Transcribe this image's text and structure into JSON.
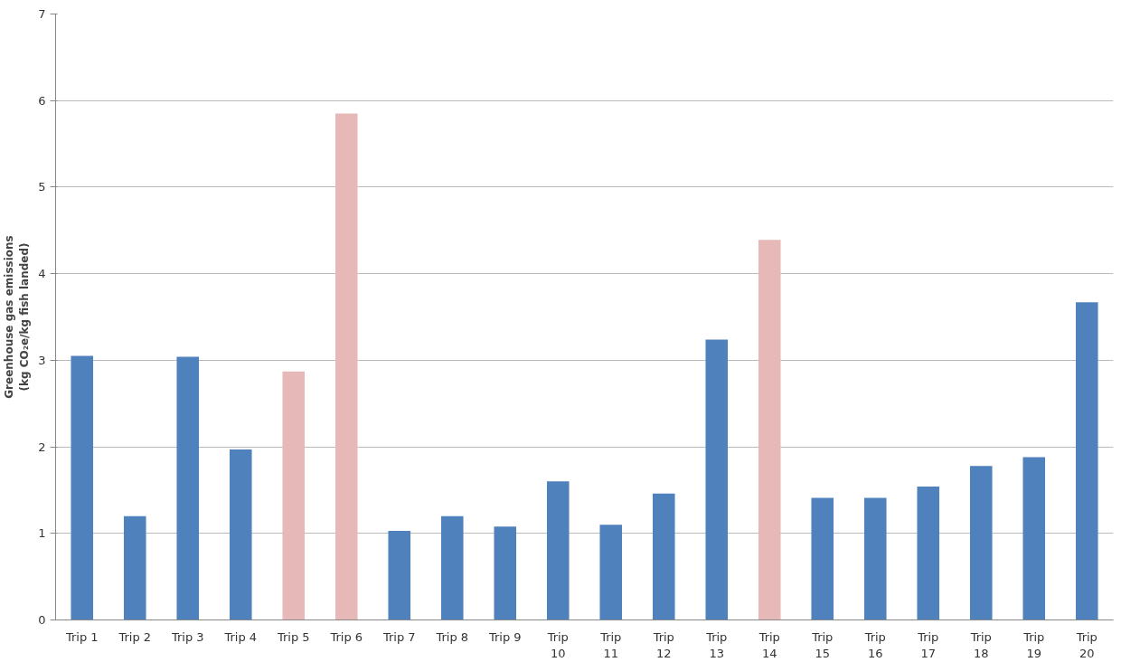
{
  "chart_data": {
    "type": "bar",
    "ylabel": "Greenhouse gas emissions\n(kg CO₂e/kg fish landed)",
    "categories": [
      "Trip 1",
      "Trip 2",
      "Trip 3",
      "Trip 4",
      "Trip 5",
      "Trip 6",
      "Trip 7",
      "Trip 8",
      "Trip 9",
      "Trip 10",
      "Trip 11",
      "Trip 12",
      "Trip 13",
      "Trip 14",
      "Trip 15",
      "Trip 16",
      "Trip 17",
      "Trip 18",
      "Trip 19",
      "Trip 20"
    ],
    "values": [
      3.05,
      1.2,
      3.04,
      1.97,
      2.87,
      5.85,
      1.03,
      1.2,
      1.08,
      1.6,
      1.1,
      1.46,
      3.24,
      4.39,
      1.41,
      1.41,
      1.54,
      1.78,
      1.88,
      3.67
    ],
    "colors": [
      "#4f81bd",
      "#4f81bd",
      "#4f81bd",
      "#4f81bd",
      "#e6b9b8",
      "#e6b9b8",
      "#4f81bd",
      "#4f81bd",
      "#4f81bd",
      "#4f81bd",
      "#4f81bd",
      "#4f81bd",
      "#4f81bd",
      "#e6b9b8",
      "#4f81bd",
      "#4f81bd",
      "#4f81bd",
      "#4f81bd",
      "#4f81bd",
      "#4f81bd"
    ],
    "ylim": [
      0,
      7
    ],
    "yticks": [
      0,
      1,
      2,
      3,
      4,
      5,
      6,
      7
    ],
    "grid": "y"
  }
}
